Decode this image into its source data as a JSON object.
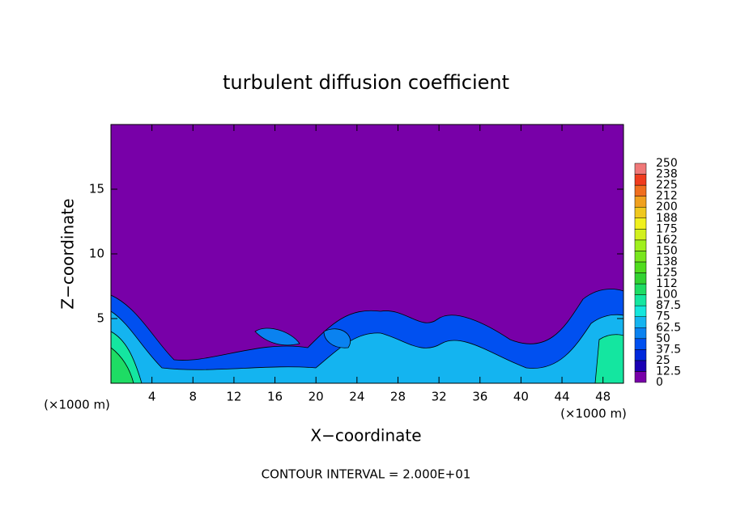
{
  "chart_data": {
    "type": "contour",
    "title": "turbulent diffusion coefficient",
    "xlabel": "X−coordinate",
    "ylabel": "Z−coordinate",
    "x_unit_label": "(×1000 m)",
    "footnote": "CONTOUR INTERVAL = 2.000E+01",
    "xlim": [
      0,
      50
    ],
    "ylim": [
      0,
      20
    ],
    "xticks": [
      4,
      8,
      12,
      16,
      20,
      24,
      28,
      32,
      36,
      40,
      44,
      48
    ],
    "yticks": [
      5,
      10,
      15
    ],
    "colorbar_lim": [
      0,
      250
    ],
    "colorbar_ticks": [
      0,
      12.5,
      25,
      37.5,
      50,
      62.5,
      75,
      87.5,
      100,
      {
        "value": 112.5,
        "label": "112"
      },
      125,
      {
        "value": 137.5,
        "label": "138"
      },
      150,
      {
        "value": 162.5,
        "label": "162"
      },
      175,
      {
        "value": 187.5,
        "label": "188"
      },
      200,
      {
        "value": 212.5,
        "label": "212"
      },
      225,
      {
        "value": 237.5,
        "label": "238"
      },
      250
    ],
    "colorbar_colors": [
      "#7800a8",
      "#1a00b4",
      "#0028dc",
      "#0050f0",
      "#0a82f0",
      "#14b4f0",
      "#14e6dc",
      "#14e6a0",
      "#1edc64",
      "#32d232",
      "#50dc1e",
      "#78e61e",
      "#a0f01e",
      "#d2f01e",
      "#f0f01e",
      "#f0c81e",
      "#f0a01e",
      "#f06e1e",
      "#f03c1e",
      "#f07878"
    ]
  }
}
